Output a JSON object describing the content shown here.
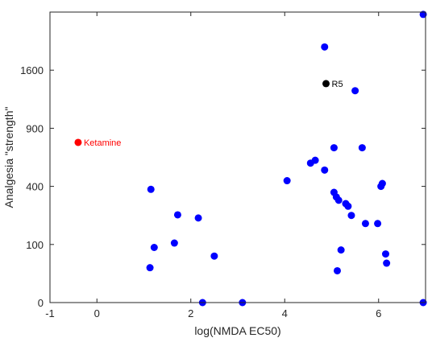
{
  "chart_data": {
    "type": "scatter",
    "xlabel": "log(NMDA EC50)",
    "ylabel": "Analgesia \"strength\"",
    "xlim": [
      -1,
      7
    ],
    "y_scale": "sqrt",
    "ylim": [
      0,
      2500
    ],
    "grid": false,
    "xticks": [
      -1,
      0,
      2,
      4,
      6
    ],
    "xtick_labels": [
      "-1",
      "0",
      "2",
      "4",
      "6"
    ],
    "yticks": [
      0,
      100,
      400,
      900,
      1600
    ],
    "ytick_labels": [
      "0",
      "100",
      "400",
      "900",
      "1600"
    ],
    "point_color": "#0000ff",
    "points": [
      {
        "x": 1.13,
        "y": 36
      },
      {
        "x": 1.15,
        "y": 380
      },
      {
        "x": 1.22,
        "y": 90
      },
      {
        "x": 1.65,
        "y": 105
      },
      {
        "x": 1.72,
        "y": 228
      },
      {
        "x": 2.16,
        "y": 212
      },
      {
        "x": 2.25,
        "y": 0
      },
      {
        "x": 2.5,
        "y": 64
      },
      {
        "x": 3.1,
        "y": 0
      },
      {
        "x": 4.05,
        "y": 440
      },
      {
        "x": 4.55,
        "y": 576
      },
      {
        "x": 4.65,
        "y": 600
      },
      {
        "x": 4.85,
        "y": 520
      },
      {
        "x": 4.85,
        "y": 1936
      },
      {
        "x": 5.05,
        "y": 360
      },
      {
        "x": 5.05,
        "y": 710
      },
      {
        "x": 5.1,
        "y": 330
      },
      {
        "x": 5.15,
        "y": 310
      },
      {
        "x": 5.12,
        "y": 30
      },
      {
        "x": 5.2,
        "y": 82
      },
      {
        "x": 5.3,
        "y": 290
      },
      {
        "x": 5.35,
        "y": 275
      },
      {
        "x": 5.42,
        "y": 225
      },
      {
        "x": 5.5,
        "y": 1330
      },
      {
        "x": 5.65,
        "y": 710
      },
      {
        "x": 5.72,
        "y": 185
      },
      {
        "x": 5.98,
        "y": 185
      },
      {
        "x": 6.05,
        "y": 400
      },
      {
        "x": 6.08,
        "y": 420
      },
      {
        "x": 6.15,
        "y": 70
      },
      {
        "x": 6.17,
        "y": 46
      },
      {
        "x": 6.95,
        "y": 0
      },
      {
        "x": 6.95,
        "y": 2460
      }
    ],
    "annotations": [
      {
        "label": "Ketamine",
        "x": -0.4,
        "y": 760,
        "color": "#ff0000"
      },
      {
        "label": "R5",
        "x": 4.88,
        "y": 1420,
        "color": "#000000"
      }
    ]
  }
}
